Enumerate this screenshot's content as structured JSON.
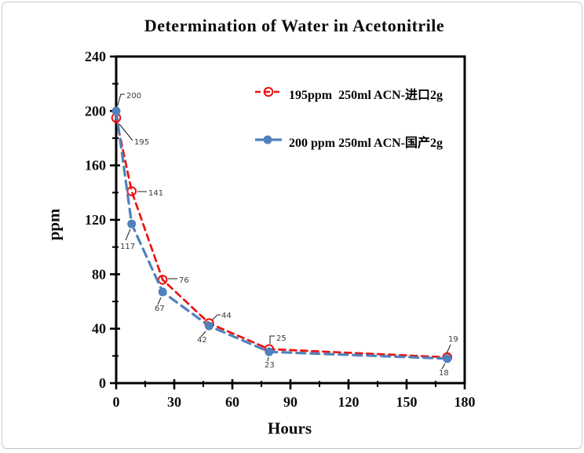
{
  "title": "Determination of Water in Acetonitrile",
  "chart_data": {
    "type": "line",
    "title": "Determination of Water in Acetonitrile",
    "xlabel": "Hours",
    "ylabel": "ppm",
    "xlim": [
      0,
      180
    ],
    "ylim": [
      0,
      240
    ],
    "xticks": [
      0,
      30,
      60,
      90,
      120,
      150,
      180
    ],
    "xticks_minor": [
      15,
      45,
      75,
      105,
      135,
      165
    ],
    "yticks": [
      0,
      40,
      80,
      120,
      160,
      200,
      240
    ],
    "yticks_minor": [
      20,
      60,
      100,
      140,
      180,
      220
    ],
    "grid": false,
    "legend_position": "inside-upper-center",
    "axis_color": "#000000",
    "series": [
      {
        "name": "195ppm  250ml ACN-进口2g",
        "color": "#ee1111",
        "marker": "open-circle",
        "line_style": "dashed",
        "x": [
          0,
          8,
          24,
          48,
          79,
          171
        ],
        "values": [
          195,
          141,
          76,
          44,
          25,
          19
        ],
        "point_labels": [
          "195",
          "141",
          "76",
          "44",
          "25",
          "19"
        ]
      },
      {
        "name": "200 ppm 250ml ACN-国产2g",
        "color": "#4f81bd",
        "marker": "filled-circle",
        "line_style": "dashed",
        "x": [
          0,
          8,
          24,
          48,
          79,
          171
        ],
        "values": [
          200,
          117,
          67,
          42,
          23,
          18
        ],
        "point_labels": [
          "200",
          "117",
          "67",
          "42",
          "23",
          "18"
        ]
      }
    ]
  }
}
